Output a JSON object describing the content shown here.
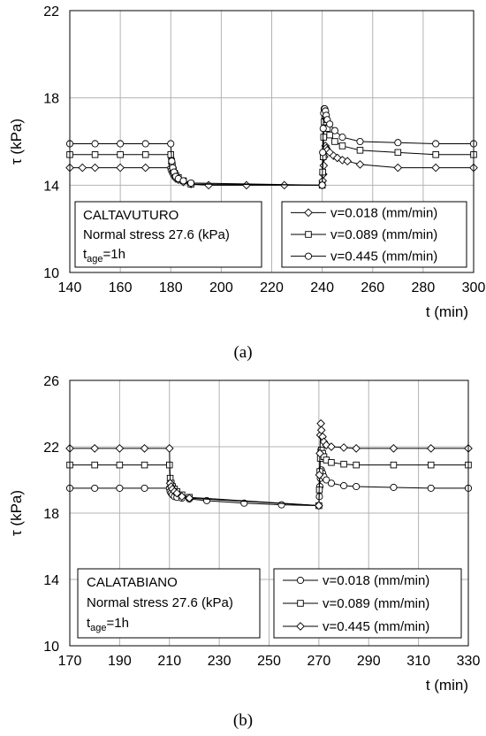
{
  "chart_data": [
    {
      "type": "line",
      "caption": "(a)",
      "xlabel": "t (min)",
      "ylabel": "τ (kPa)",
      "xlim": [
        140,
        300
      ],
      "ylim": [
        10,
        22
      ],
      "xticks": [
        140,
        160,
        180,
        200,
        220,
        240,
        260,
        280,
        300
      ],
      "yticks": [
        10,
        14,
        18,
        22
      ],
      "grid": true,
      "legend_position": "bottom-right",
      "info": {
        "site": "CALTAVUTURO",
        "stress": "Normal stress 27.6 (kPa)",
        "tage_main": "t",
        "tage_sub": "age",
        "tage_rest": "=1h"
      },
      "series": [
        {
          "name": "v=0.018 (mm/min)",
          "marker": "diamond",
          "x": [
            140,
            145,
            150,
            160,
            170,
            180,
            180.3,
            180.6,
            181,
            181.5,
            182,
            183,
            185,
            188,
            195,
            210,
            225,
            240,
            240.2,
            240.4,
            240.6,
            240.8,
            241,
            241.3,
            241.6,
            242,
            243,
            244.5,
            246,
            248,
            250,
            255,
            270,
            285,
            300
          ],
          "y": [
            14.8,
            14.8,
            14.8,
            14.8,
            14.8,
            14.8,
            14.7,
            14.6,
            14.5,
            14.4,
            14.3,
            14.25,
            14.15,
            14.05,
            14.0,
            14.0,
            14.0,
            14.0,
            14.2,
            14.5,
            14.9,
            15.3,
            15.6,
            15.8,
            15.7,
            15.6,
            15.5,
            15.35,
            15.25,
            15.15,
            15.1,
            14.95,
            14.8,
            14.8,
            14.8
          ]
        },
        {
          "name": "v=0.089 (mm/min)",
          "marker": "square",
          "x": [
            140,
            150,
            160,
            170,
            180,
            180.3,
            180.6,
            181,
            181.5,
            182,
            183,
            185,
            188,
            240,
            240.2,
            240.4,
            240.6,
            240.8,
            241,
            241.3,
            241.6,
            242,
            243,
            245,
            248,
            255,
            270,
            285,
            300
          ],
          "y": [
            15.4,
            15.4,
            15.4,
            15.4,
            15.4,
            15.1,
            14.9,
            14.7,
            14.55,
            14.45,
            14.35,
            14.2,
            14.05,
            14.0,
            14.6,
            15.3,
            16.2,
            16.9,
            17.2,
            17.3,
            17.0,
            16.6,
            16.3,
            16.0,
            15.8,
            15.6,
            15.5,
            15.4,
            15.4
          ]
        },
        {
          "name": "v=0.445 (mm/min)",
          "marker": "circle",
          "x": [
            140,
            150,
            160,
            170,
            180,
            180.4,
            180.8,
            181.3,
            182,
            183,
            185,
            188,
            240,
            240.2,
            240.4,
            240.6,
            240.8,
            241,
            241.3,
            241.6,
            242,
            243,
            245,
            248,
            255,
            270,
            285,
            300
          ],
          "y": [
            15.9,
            15.9,
            15.9,
            15.9,
            15.9,
            15.1,
            14.8,
            14.6,
            14.4,
            14.3,
            14.2,
            14.1,
            14.0,
            15.5,
            16.6,
            17.3,
            17.5,
            17.5,
            17.4,
            17.2,
            17.0,
            16.8,
            16.5,
            16.2,
            16.0,
            15.95,
            15.9,
            15.9
          ]
        }
      ]
    },
    {
      "type": "line",
      "caption": "(b)",
      "xlabel": "t (min)",
      "ylabel": "τ (kPa)",
      "xlim": [
        170,
        330
      ],
      "ylim": [
        10,
        26
      ],
      "xticks": [
        170,
        190,
        210,
        230,
        250,
        270,
        290,
        310,
        330
      ],
      "yticks": [
        10,
        14,
        18,
        22,
        26
      ],
      "grid": true,
      "legend_position": "bottom-right",
      "info": {
        "site": "CALATABIANO",
        "stress": "Normal stress 27.6 (kPa)",
        "tage_main": "t",
        "tage_sub": "age",
        "tage_rest": "=1h"
      },
      "series": [
        {
          "name": "v=0.018 (mm/min)",
          "marker": "circle",
          "x": [
            170,
            180,
            190,
            200,
            210,
            210.3,
            210.7,
            211.2,
            212,
            213,
            215,
            218,
            225,
            240,
            255,
            270,
            270.2,
            270.4,
            270.6,
            270.8,
            271,
            271.5,
            272,
            273,
            275,
            280,
            285,
            300,
            315,
            330
          ],
          "y": [
            19.5,
            19.5,
            19.5,
            19.5,
            19.5,
            19.3,
            19.2,
            19.1,
            19.0,
            18.95,
            18.9,
            18.85,
            18.75,
            18.6,
            18.5,
            18.45,
            19.0,
            19.6,
            20.1,
            20.5,
            20.6,
            20.4,
            20.2,
            20.0,
            19.8,
            19.65,
            19.6,
            19.55,
            19.5,
            19.5
          ]
        },
        {
          "name": "v=0.089 (mm/min)",
          "marker": "square",
          "x": [
            170,
            180,
            190,
            200,
            210,
            210.3,
            210.7,
            211.2,
            212,
            213,
            215,
            218,
            270,
            270.2,
            270.4,
            270.6,
            270.8,
            271,
            271.5,
            272,
            273,
            275,
            280,
            285,
            300,
            315,
            330
          ],
          "y": [
            20.9,
            20.9,
            20.9,
            20.9,
            20.9,
            20.1,
            19.8,
            19.6,
            19.45,
            19.3,
            19.1,
            18.95,
            18.45,
            19.4,
            20.5,
            21.3,
            21.7,
            21.8,
            21.6,
            21.4,
            21.2,
            21.05,
            20.95,
            20.9,
            20.9,
            20.9,
            20.9
          ]
        },
        {
          "name": "v=0.445 (mm/min)",
          "marker": "diamond",
          "x": [
            170,
            180,
            190,
            200,
            210,
            210.3,
            210.7,
            211.2,
            212,
            213,
            215,
            218,
            270,
            270.2,
            270.4,
            270.6,
            270.8,
            271,
            271.5,
            272,
            273,
            275,
            280,
            285,
            300,
            315,
            330
          ],
          "y": [
            21.9,
            21.9,
            21.9,
            21.9,
            21.9,
            19.8,
            19.6,
            19.45,
            19.3,
            19.2,
            19.0,
            18.9,
            18.45,
            20.3,
            21.6,
            22.7,
            23.4,
            23.0,
            22.6,
            22.3,
            22.1,
            22.0,
            21.95,
            21.9,
            21.9,
            21.9,
            21.9
          ]
        }
      ]
    }
  ]
}
